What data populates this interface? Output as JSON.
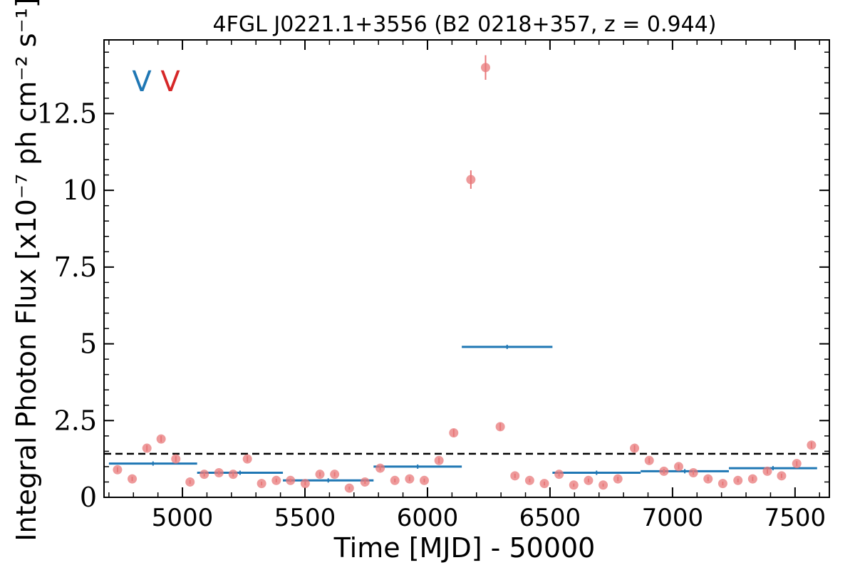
{
  "chart_data": {
    "type": "scatter",
    "title": "4FGL J0221.1+3556 (B2 0218+357, z = 0.944)",
    "xlabel": "Time [MJD] - 50000",
    "ylabel": "Integral Photon Flux [x10⁻⁷ ph cm⁻² s⁻¹]",
    "xlim": [
      4680,
      7640
    ],
    "ylim": [
      0,
      14.9
    ],
    "xticks": [
      5000,
      5500,
      6000,
      6500,
      7000,
      7500
    ],
    "xtick_labels": [
      "5000",
      "5500",
      "6000",
      "6500",
      "7000",
      "7500"
    ],
    "yticks": [
      0,
      2.5,
      5,
      7.5,
      10,
      12.5
    ],
    "ytick_labels": [
      "0",
      "2.5",
      "5",
      "7.5",
      "10",
      "12.5"
    ],
    "grid": false,
    "colors": {
      "points": "#e8787a",
      "blocks": "#1f77b4",
      "baseline": "#000000",
      "marker_blue": "#1f77b4",
      "marker_red": "#d62728"
    },
    "markers": [
      {
        "label": "V",
        "color": "#1f77b4"
      },
      {
        "label": "V",
        "color": "#d62728"
      }
    ],
    "baseline": {
      "y": 1.42,
      "style": "dashed"
    },
    "series": [
      {
        "kind": "points",
        "x": [
          4735,
          4795,
          4855,
          4913,
          4973,
          5031,
          5089,
          5149,
          5207,
          5265,
          5323,
          5383,
          5441,
          5501,
          5561,
          5621,
          5681,
          5745,
          5807,
          5867,
          5927,
          5987,
          6047,
          6107,
          6177,
          6237,
          6297,
          6357,
          6417,
          6477,
          6537,
          6597,
          6657,
          6717,
          6777,
          6845,
          6905,
          6965,
          7025,
          7085,
          7145,
          7205,
          7267,
          7327,
          7387,
          7445,
          7507,
          7567
        ],
        "y": [
          0.9,
          0.6,
          1.6,
          1.9,
          1.25,
          0.5,
          0.75,
          0.8,
          0.75,
          1.25,
          0.45,
          0.55,
          0.55,
          0.45,
          0.75,
          0.75,
          0.3,
          0.5,
          0.95,
          0.55,
          0.6,
          0.55,
          1.2,
          2.1,
          10.35,
          14.0,
          2.3,
          0.7,
          0.55,
          0.45,
          0.75,
          0.4,
          0.55,
          0.4,
          0.6,
          1.6,
          1.2,
          0.85,
          1.0,
          0.8,
          0.6,
          0.45,
          0.55,
          0.6,
          0.85,
          0.7,
          1.1,
          1.7
        ],
        "yerr": [
          0.08,
          0.07,
          0.1,
          0.1,
          0.09,
          0.06,
          0.07,
          0.07,
          0.07,
          0.09,
          0.06,
          0.06,
          0.06,
          0.06,
          0.07,
          0.07,
          0.05,
          0.06,
          0.08,
          0.06,
          0.07,
          0.06,
          0.09,
          0.12,
          0.3,
          0.4,
          0.12,
          0.07,
          0.06,
          0.06,
          0.07,
          0.05,
          0.06,
          0.05,
          0.07,
          0.1,
          0.09,
          0.08,
          0.08,
          0.07,
          0.07,
          0.06,
          0.06,
          0.07,
          0.08,
          0.07,
          0.08,
          0.1
        ]
      },
      {
        "kind": "blocks",
        "segments": [
          {
            "x0": 4700,
            "x1": 5060,
            "y": 1.1
          },
          {
            "x0": 5060,
            "x1": 5410,
            "y": 0.8
          },
          {
            "x0": 5410,
            "x1": 5780,
            "y": 0.55
          },
          {
            "x0": 5780,
            "x1": 6140,
            "y": 1.0
          },
          {
            "x0": 6140,
            "x1": 6510,
            "y": 4.9
          },
          {
            "x0": 6510,
            "x1": 6870,
            "y": 0.8
          },
          {
            "x0": 6870,
            "x1": 7230,
            "y": 0.85
          },
          {
            "x0": 7230,
            "x1": 7590,
            "y": 0.95
          }
        ]
      }
    ]
  }
}
